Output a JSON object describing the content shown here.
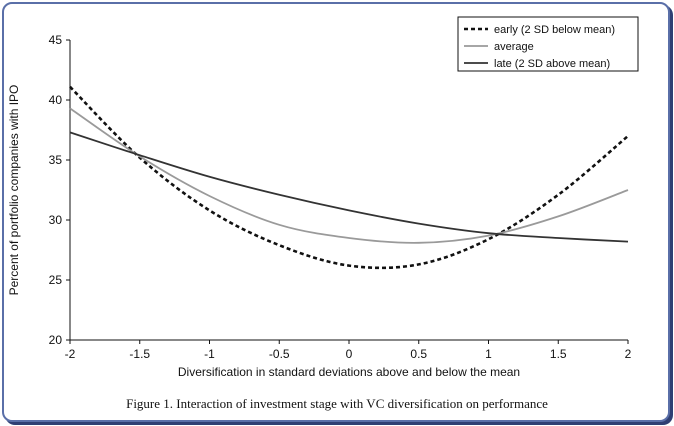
{
  "caption": "Figure 1.   Interaction of investment stage with VC diversification on performance",
  "chart_data": {
    "type": "line",
    "title": "",
    "xlabel": "Diversification in standard deviations above and below the mean",
    "ylabel": "Percent of portfolio companies with IPO",
    "xlim": [
      -2,
      2
    ],
    "ylim": [
      20,
      45
    ],
    "x_ticks": [
      "-2",
      "-1.5",
      "-1",
      "-0.5",
      "0",
      "0.5",
      "1",
      "1.5",
      "2"
    ],
    "y_ticks": [
      "20",
      "25",
      "30",
      "35",
      "40",
      "45"
    ],
    "grid": false,
    "legend": "top-right",
    "x": [
      -2,
      -1.5,
      -1,
      -0.5,
      0,
      0.5,
      1,
      1.5,
      2
    ],
    "series": [
      {
        "name": "early (2 SD below mean)",
        "style": "dotted",
        "color": "#111111",
        "values": [
          41.1,
          35.2,
          30.8,
          27.9,
          26.2,
          26.3,
          28.4,
          32.1,
          37.0
        ]
      },
      {
        "name": "average",
        "style": "solid",
        "color": "#9a9a9a",
        "values": [
          39.3,
          35.3,
          32.0,
          29.6,
          28.5,
          28.1,
          28.7,
          30.3,
          32.5
        ]
      },
      {
        "name": "late (2 SD above mean)",
        "style": "solid",
        "color": "#333333",
        "values": [
          37.3,
          35.4,
          33.6,
          32.1,
          30.8,
          29.7,
          28.9,
          28.5,
          28.2
        ]
      }
    ]
  }
}
